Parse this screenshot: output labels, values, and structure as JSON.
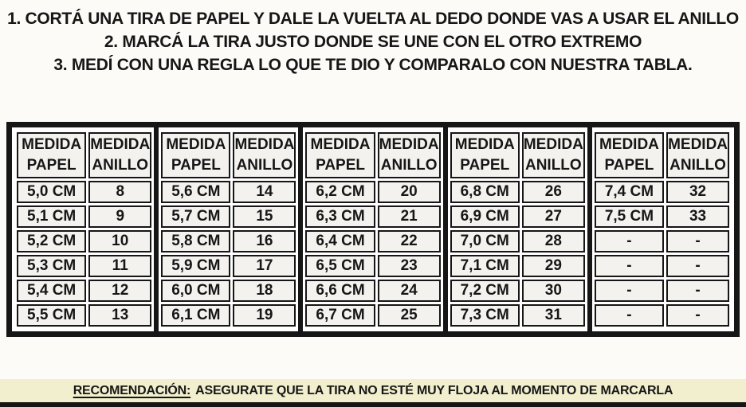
{
  "instructions": {
    "lines": [
      "1. CORTÁ UNA TIRA DE PAPEL Y DALE LA VUELTA AL DEDO DONDE VAS A USAR EL ANILLO",
      "2. MARCÁ LA TIRA JUSTO DONDE SE UNE CON EL OTRO EXTREMO",
      "3. MEDÍ CON UNA REGLA LO QUE TE DIO Y COMPARALO CON NUESTRA TABLA."
    ]
  },
  "table": {
    "header": {
      "papel": [
        "MEDIDA",
        "PAPEL"
      ],
      "anillo": [
        "MEDIDA",
        "ANILLO"
      ]
    },
    "groups": [
      {
        "rows": [
          [
            "5,0 CM",
            "8"
          ],
          [
            "5,1 CM",
            "9"
          ],
          [
            "5,2 CM",
            "10"
          ],
          [
            "5,3 CM",
            "11"
          ],
          [
            "5,4 CM",
            "12"
          ],
          [
            "5,5 CM",
            "13"
          ]
        ]
      },
      {
        "rows": [
          [
            "5,6 CM",
            "14"
          ],
          [
            "5,7 CM",
            "15"
          ],
          [
            "5,8 CM",
            "16"
          ],
          [
            "5,9 CM",
            "17"
          ],
          [
            "6,0 CM",
            "18"
          ],
          [
            "6,1 CM",
            "19"
          ]
        ]
      },
      {
        "rows": [
          [
            "6,2 CM",
            "20"
          ],
          [
            "6,3 CM",
            "21"
          ],
          [
            "6,4 CM",
            "22"
          ],
          [
            "6,5 CM",
            "23"
          ],
          [
            "6,6 CM",
            "24"
          ],
          [
            "6,7 CM",
            "25"
          ]
        ]
      },
      {
        "rows": [
          [
            "6,8 CM",
            "26"
          ],
          [
            "6,9 CM",
            "27"
          ],
          [
            "7,0 CM",
            "28"
          ],
          [
            "7,1 CM",
            "29"
          ],
          [
            "7,2 CM",
            "30"
          ],
          [
            "7,3 CM",
            "31"
          ]
        ]
      },
      {
        "rows": [
          [
            "7,4 CM",
            "32"
          ],
          [
            "7,5 CM",
            "33"
          ],
          [
            "-",
            "-"
          ],
          [
            "-",
            "-"
          ],
          [
            "-",
            "-"
          ],
          [
            "-",
            "-"
          ]
        ]
      }
    ]
  },
  "recommendation": {
    "label": "RECOMENDACIÓN:",
    "text": "ASEGURATE QUE LA TIRA NO ESTÉ MUY FLOJA AL MOMENTO DE MARCARLA"
  },
  "colors": {
    "ink": "#161616",
    "cell_bg": "#f3f2ee",
    "strip_bg": "#f2efcf",
    "page_bg": "#fcfbf8"
  }
}
